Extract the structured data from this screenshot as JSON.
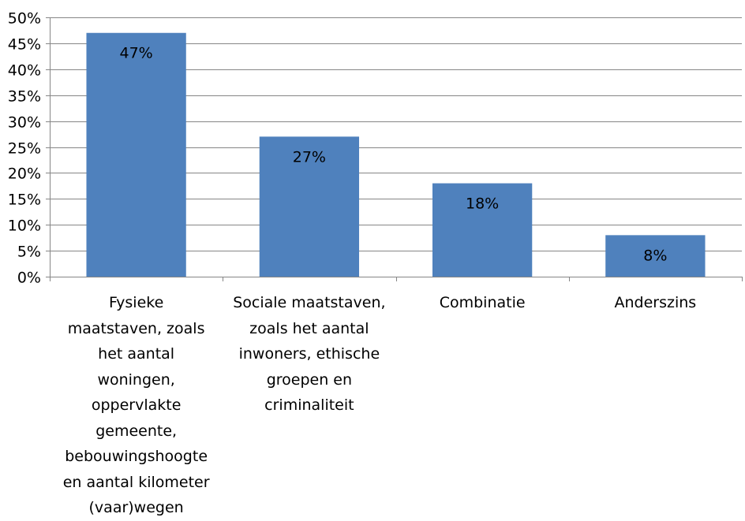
{
  "chart_data": {
    "type": "bar",
    "categories": [
      "Fysieke\nmaatstaven, zoals\nhet aantal\nwoningen,\noppervlakte\ngemeente,\nbebouwingshoogte\nen aantal kilometer\n(vaar)wegen",
      "Sociale maatstaven,\nzoals het aantal\ninwoners, ethische\ngroepen en\ncriminaliteit",
      "Combinatie",
      "Anderszins"
    ],
    "values": [
      47,
      27,
      18,
      8
    ],
    "data_labels": [
      "47%",
      "27%",
      "18%",
      "8%"
    ],
    "y_ticks": [
      "0%",
      "5%",
      "10%",
      "15%",
      "20%",
      "25%",
      "30%",
      "35%",
      "40%",
      "45%",
      "50%"
    ],
    "ylim": [
      0,
      50
    ],
    "grid": true,
    "legend": "none",
    "bar_color": "#4F81BD"
  }
}
